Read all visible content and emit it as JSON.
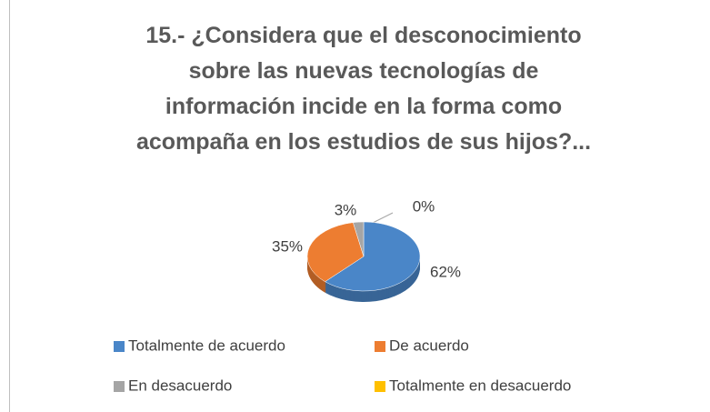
{
  "chart_data": {
    "type": "pie",
    "title": "15.- ¿Considera que el desconocimiento sobre las nuevas tecnologías de información incide en la forma como acompaña en los estudios de sus hijos?...",
    "categories": [
      "Totalmente de acuerdo",
      "De acuerdo",
      "En desacuerdo",
      "Totalmente en desacuerdo"
    ],
    "values": [
      62,
      35,
      3,
      0
    ],
    "value_labels": [
      "62%",
      "35%",
      "3%",
      "0%"
    ],
    "colors": [
      "#4a86c8",
      "#ed7d31",
      "#a5a5a5",
      "#ffc000"
    ],
    "legend": "bottom"
  }
}
